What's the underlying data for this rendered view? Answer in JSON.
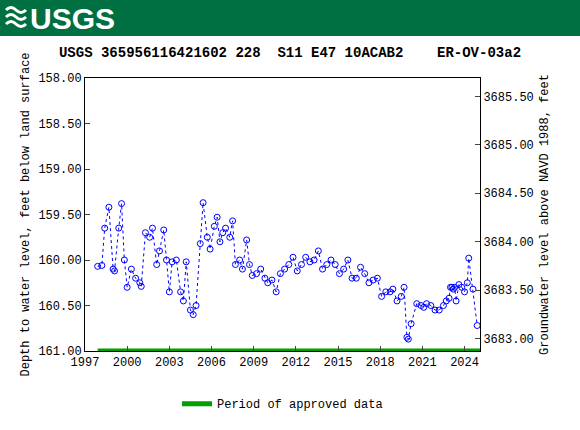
{
  "header": {
    "logo": "USGS"
  },
  "chart_data": {
    "type": "scatter",
    "title": "USGS 365956116421602 228  S11 E47 10ACAB2    ER-OV-03a2",
    "xlim": [
      1997,
      2025.1
    ],
    "xticks": [
      1997,
      2000,
      2003,
      2006,
      2009,
      2012,
      2015,
      2018,
      2021,
      2024
    ],
    "ylabel": "Depth to water level, feet below land surface",
    "ylim": [
      161,
      158
    ],
    "yticks": [
      {
        "value": 158,
        "label": "158.00"
      },
      {
        "value": 158.5,
        "label": "158.50"
      },
      {
        "value": 159,
        "label": "159.00"
      },
      {
        "value": 159.5,
        "label": "159.50"
      },
      {
        "value": 160,
        "label": "160.00"
      },
      {
        "value": 160.5,
        "label": "160.50"
      },
      {
        "value": 161,
        "label": "161.00"
      }
    ],
    "y2label": "Groundwater level above NAVD 1988, feet",
    "y2lim": [
      3682.87,
      3685.69
    ],
    "y2ticks": [
      {
        "value": 3683,
        "label": "3683.00"
      },
      {
        "value": 3683.5,
        "label": "3683.50"
      },
      {
        "value": 3684,
        "label": "3684.00"
      },
      {
        "value": 3684.5,
        "label": "3684.50"
      },
      {
        "value": 3685,
        "label": "3685.00"
      },
      {
        "value": 3685.5,
        "label": "3685.50"
      }
    ],
    "grid": false,
    "legend": "bottom",
    "series": [
      {
        "color": "#0000ff",
        "marker": "circle-open",
        "line_style": "dotted",
        "x": [
          1997.9,
          1998.2,
          1998.4,
          1998.7,
          1999.0,
          1999.1,
          1999.4,
          1999.6,
          1999.8,
          2000.0,
          2000.3,
          2000.6,
          2000.9,
          2001.0,
          2001.3,
          2001.6,
          2001.8,
          2002.1,
          2002.3,
          2002.6,
          2002.8,
          2003.0,
          2003.2,
          2003.5,
          2003.8,
          2004.0,
          2004.2,
          2004.5,
          2004.7,
          2004.9,
          2005.2,
          2005.4,
          2005.7,
          2005.9,
          2006.2,
          2006.4,
          2006.6,
          2006.8,
          2007.0,
          2007.3,
          2007.5,
          2007.7,
          2008.0,
          2008.2,
          2008.5,
          2008.7,
          2008.9,
          2009.2,
          2009.5,
          2009.8,
          2010.0,
          2010.3,
          2010.6,
          2010.9,
          2011.2,
          2011.5,
          2011.8,
          2012.1,
          2012.4,
          2012.7,
          2013.0,
          2013.3,
          2013.6,
          2013.9,
          2014.2,
          2014.5,
          2014.8,
          2015.1,
          2015.4,
          2015.7,
          2016.0,
          2016.3,
          2016.6,
          2016.9,
          2017.2,
          2017.5,
          2017.8,
          2018.1,
          2018.4,
          2018.7,
          2018.9,
          2019.2,
          2019.5,
          2019.7,
          2019.9,
          2020.0,
          2020.2,
          2020.6,
          2020.9,
          2021.1,
          2021.3,
          2021.6,
          2021.9,
          2022.2,
          2022.5,
          2022.7,
          2022.9,
          2023.0,
          2023.1,
          2023.2,
          2023.3,
          2023.4,
          2023.6,
          2023.8,
          2024.0,
          2024.2,
          2024.3,
          2024.6,
          2024.9
        ],
        "values": [
          160.07,
          160.06,
          159.65,
          159.42,
          160.1,
          160.12,
          159.65,
          159.38,
          160.0,
          160.3,
          160.1,
          160.2,
          160.25,
          160.29,
          159.7,
          159.75,
          159.65,
          160.05,
          159.9,
          159.67,
          160.0,
          160.35,
          160.02,
          160.0,
          160.35,
          160.45,
          160.02,
          160.55,
          160.6,
          160.5,
          159.82,
          159.37,
          159.75,
          159.88,
          159.63,
          159.53,
          159.8,
          159.7,
          159.65,
          159.75,
          159.57,
          160.05,
          160.0,
          160.1,
          159.78,
          160.05,
          160.17,
          160.15,
          160.1,
          160.2,
          160.25,
          160.22,
          160.35,
          160.15,
          160.1,
          160.05,
          159.97,
          160.12,
          160.05,
          159.97,
          160.02,
          160.0,
          159.9,
          160.1,
          160.05,
          160.0,
          160.05,
          160.15,
          160.1,
          160.0,
          160.2,
          160.2,
          160.08,
          160.15,
          160.25,
          160.22,
          160.2,
          160.4,
          160.35,
          160.35,
          160.32,
          160.45,
          160.4,
          160.3,
          160.85,
          160.87,
          160.7,
          160.48,
          160.5,
          160.52,
          160.48,
          160.5,
          160.55,
          160.55,
          160.5,
          160.45,
          160.42,
          160.3,
          160.3,
          160.32,
          160.3,
          160.45,
          160.27,
          160.3,
          160.35,
          160.25,
          159.98,
          160.32,
          160.72
        ]
      },
      {
        "name": "Period of approved data",
        "color": "#00a000",
        "line_style": "solid",
        "x": [
          1997.9,
          2025.1
        ],
        "values": [
          161,
          161
        ]
      }
    ]
  }
}
